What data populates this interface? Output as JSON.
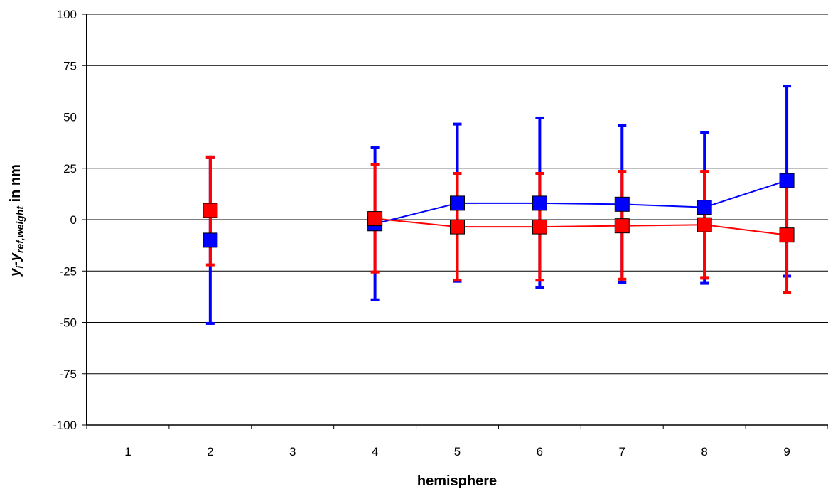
{
  "chart_data": {
    "type": "line",
    "title": "",
    "xlabel": "hemisphere",
    "ylabel": {
      "main": "y",
      "sub1": "i",
      "dash": "-y",
      "sub2": "ref,weight",
      "suffix": " in nm"
    },
    "categories": [
      "1",
      "2",
      "3",
      "4",
      "5",
      "6",
      "7",
      "8",
      "9"
    ],
    "ylim": [
      -100,
      100
    ],
    "yticks": [
      "100",
      "75",
      "50",
      "25",
      "0",
      "-25",
      "-50",
      "-75",
      "-100"
    ],
    "grid": "horizontal",
    "legend": "none",
    "series": [
      {
        "color": "#0000ff",
        "values": [
          null,
          -10,
          null,
          -2,
          8,
          8,
          7.5,
          6,
          19
        ],
        "err_high": [
          null,
          30.5,
          null,
          35,
          46.5,
          49.5,
          46,
          42.5,
          65
        ],
        "err_low": [
          null,
          -50.5,
          null,
          -39,
          -30,
          -33,
          -30.5,
          -31,
          -27.5
        ]
      },
      {
        "color": "#ff0000",
        "values": [
          null,
          4.5,
          null,
          0.5,
          -3.5,
          -3.5,
          -3,
          -2.5,
          -7.5
        ],
        "err_high": [
          null,
          30.5,
          null,
          27,
          22.5,
          22.5,
          23.5,
          23.5,
          22
        ],
        "err_low": [
          null,
          -22,
          null,
          -25.5,
          -29.5,
          -29.5,
          -29,
          -28.5,
          -35.5
        ]
      }
    ]
  }
}
